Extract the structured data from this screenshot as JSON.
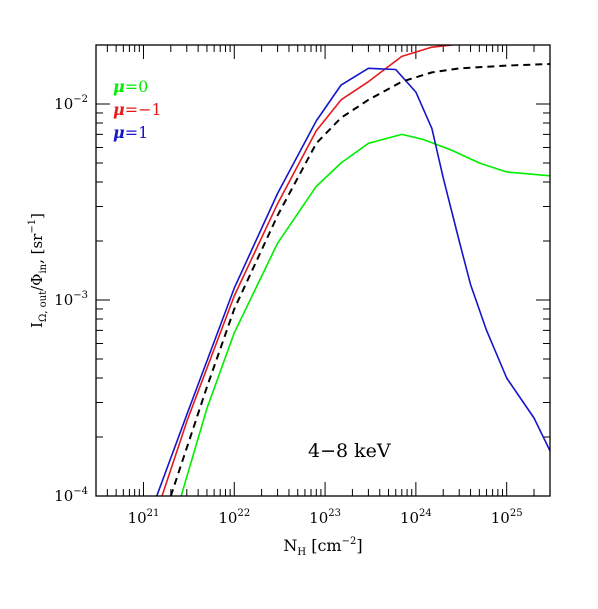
{
  "chart_data": {
    "type": "line",
    "xlabel": "N",
    "xlabel_sub": "H",
    "xlabel_unit": "[cm",
    "xlabel_unit_sup": "−2",
    "xlabel_close": "]",
    "ylabel_main": "I",
    "ylabel_sub": "Ω, out",
    "ylabel_mid": "/Φ",
    "ylabel_sub2": "in",
    "ylabel_unit": ", [sr",
    "ylabel_unit_sup": "−1",
    "ylabel_close": "]",
    "xscale": "log",
    "yscale": "log",
    "xlim": [
      3e+20,
      3e+25
    ],
    "ylim": [
      0.0001,
      0.02
    ],
    "x_tick_base": "10",
    "x_tick_exps": [
      "21",
      "22",
      "23",
      "24",
      "25"
    ],
    "y_tick_base": "10",
    "y_tick_exps": [
      "−4",
      "−3",
      "−2"
    ],
    "annotation": "4−8 keV",
    "legend_position": "top-left",
    "series": [
      {
        "name": "μ=0",
        "label_symbol": "μ",
        "label_rest": "=0",
        "color": "#00ee00",
        "dash": "solid",
        "points": [
          [
            2.6e+21,
            0.0001
          ],
          [
            5e+21,
            0.00028
          ],
          [
            1e+22,
            0.00068
          ],
          [
            3e+22,
            0.00195
          ],
          [
            8e+22,
            0.0038
          ],
          [
            1.5e+23,
            0.005
          ],
          [
            3e+23,
            0.0063
          ],
          [
            7e+23,
            0.007
          ],
          [
            1.2e+24,
            0.0066
          ],
          [
            2.5e+24,
            0.0058
          ],
          [
            5e+24,
            0.005
          ],
          [
            1e+25,
            0.0045
          ],
          [
            3e+25,
            0.0043
          ]
        ]
      },
      {
        "name": "μ=−1",
        "label_symbol": "μ",
        "label_rest": "=−1",
        "color": "#e41a1c",
        "dash": "solid",
        "points": [
          [
            1.6e+21,
            0.0001
          ],
          [
            3e+21,
            0.00024
          ],
          [
            1e+22,
            0.00105
          ],
          [
            3e+22,
            0.0031
          ],
          [
            8e+22,
            0.0073
          ],
          [
            1.5e+23,
            0.0105
          ],
          [
            3e+23,
            0.013
          ],
          [
            7e+23,
            0.0175
          ],
          [
            1.5e+24,
            0.0195
          ],
          [
            3e+24,
            0.0202
          ],
          [
            1e+25,
            0.0203
          ],
          [
            3e+25,
            0.0203
          ]
        ]
      },
      {
        "name": "μ=1",
        "label_symbol": "μ",
        "label_rest": "=1",
        "color": "#1515cc",
        "dash": "solid",
        "points": [
          [
            1.4e+21,
            0.0001
          ],
          [
            3e+21,
            0.00026
          ],
          [
            1e+22,
            0.00115
          ],
          [
            3e+22,
            0.0035
          ],
          [
            8e+22,
            0.0082
          ],
          [
            1.5e+23,
            0.0125
          ],
          [
            3e+23,
            0.0152
          ],
          [
            6e+23,
            0.015
          ],
          [
            1e+24,
            0.0115
          ],
          [
            1.5e+24,
            0.0075
          ],
          [
            2e+24,
            0.0042
          ],
          [
            3e+24,
            0.002
          ],
          [
            4e+24,
            0.0012
          ],
          [
            6e+24,
            0.0007
          ],
          [
            1e+25,
            0.0004
          ],
          [
            2e+25,
            0.00025
          ],
          [
            3e+25,
            0.00017
          ]
        ]
      },
      {
        "name": "",
        "color": "#000000",
        "dash": "dashed",
        "points": [
          [
            2e+21,
            0.0001
          ],
          [
            5e+21,
            0.00036
          ],
          [
            1e+22,
            0.0009
          ],
          [
            3e+22,
            0.0027
          ],
          [
            8e+22,
            0.0063
          ],
          [
            1.5e+23,
            0.0085
          ],
          [
            3e+23,
            0.0105
          ],
          [
            7e+23,
            0.013
          ],
          [
            1.5e+24,
            0.0145
          ],
          [
            3e+24,
            0.0152
          ],
          [
            1e+25,
            0.0157
          ],
          [
            3e+25,
            0.016
          ]
        ]
      }
    ]
  }
}
